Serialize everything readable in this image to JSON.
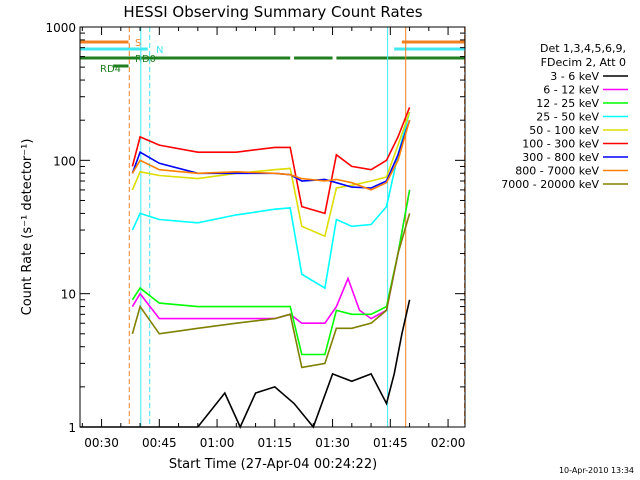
{
  "chart_data": {
    "type": "line",
    "title": "HESSI Observing Summary Count Rates",
    "xlabel": "Start Time (27-Apr-04 00:24:22)",
    "ylabel": "Count Rate (s⁻¹ detector⁻¹)",
    "yscale": "log",
    "ylim": [
      1,
      1000
    ],
    "xlim_minutes": [
      24.4,
      124.4
    ],
    "x_ticks": [
      "00:30",
      "00:45",
      "01:00",
      "01:15",
      "01:30",
      "01:45",
      "02:00"
    ],
    "y_ticks": [
      "1",
      "10",
      "100",
      "1000"
    ],
    "legend_header": [
      "Det 1,3,4,5,6,9,",
      "FDecim 2, Att 0"
    ],
    "legend_position": "right",
    "footer_stamp": "10-Apr-2010 13:34",
    "state_bars": [
      {
        "label": "S",
        "color": "#f08020",
        "segments": [
          [
            24.4,
            37
          ],
          [
            108,
            124.4
          ]
        ]
      },
      {
        "label": "N",
        "color": "#40e8f0",
        "segments": [
          [
            24.4,
            42
          ],
          [
            106,
            124.4
          ]
        ]
      },
      {
        "label": "RD0",
        "color": "#208020",
        "segments": [
          [
            24.4,
            79
          ],
          [
            80,
            90
          ],
          [
            91,
            124.4
          ]
        ]
      },
      {
        "label": "RD4",
        "color": "#208020",
        "segments": [
          [
            33,
            37
          ]
        ]
      }
    ],
    "vlines": [
      {
        "x": 37.2,
        "color": "#f08020",
        "style": "dashed"
      },
      {
        "x": 40.2,
        "color": "#40e8f0",
        "style": "solid"
      },
      {
        "x": 42.5,
        "color": "#40e8f0",
        "style": "dashed"
      },
      {
        "x": 104.3,
        "color": "#40e8f0",
        "style": "solid"
      },
      {
        "x": 109,
        "color": "#f08020",
        "style": "solid"
      },
      {
        "x": 124.3,
        "color": "#f08020",
        "style": "dashed"
      }
    ],
    "series": [
      {
        "name": "3 - 6 keV",
        "color": "#000000",
        "x": [
          24.4,
          37,
          45,
          55,
          62,
          66,
          70,
          75,
          80,
          85,
          90,
          95,
          100,
          104,
          106,
          108,
          110
        ],
        "y": [
          1,
          1,
          1,
          1,
          1.8,
          1,
          1.8,
          2,
          1.5,
          1,
          2.5,
          2.2,
          2.5,
          1.5,
          2.5,
          5,
          9
        ]
      },
      {
        "name": "6 - 12 keV",
        "color": "#ff00ff",
        "x": [
          38,
          40,
          45,
          55,
          65,
          75,
          79,
          82,
          88,
          91,
          94,
          97,
          100,
          104,
          107,
          110
        ],
        "y": [
          8,
          10,
          6.5,
          6.5,
          6.5,
          6.5,
          7,
          6,
          6,
          8,
          13,
          7.5,
          6.5,
          7.5,
          20,
          60
        ]
      },
      {
        "name": "12 - 25 keV",
        "color": "#00ff00",
        "x": [
          38,
          40,
          45,
          55,
          65,
          75,
          79,
          82,
          88,
          91,
          95,
          100,
          104,
          107,
          110
        ],
        "y": [
          9,
          11,
          8.5,
          8,
          8,
          8,
          8,
          3.5,
          3.5,
          7.5,
          7,
          7,
          8,
          20,
          60
        ]
      },
      {
        "name": "25 - 50 keV",
        "color": "#00ffff",
        "x": [
          38,
          40,
          45,
          55,
          65,
          75,
          79,
          82,
          88,
          91,
          95,
          100,
          104,
          107,
          110
        ],
        "y": [
          30,
          40,
          36,
          34,
          39,
          43,
          44,
          14,
          11,
          36,
          32,
          33,
          45,
          110,
          230
        ]
      },
      {
        "name": "50 - 100 keV",
        "color": "#dddd00",
        "x": [
          38,
          40,
          45,
          55,
          65,
          75,
          79,
          82,
          88,
          91,
          95,
          100,
          104,
          107,
          110
        ],
        "y": [
          60,
          82,
          77,
          73,
          80,
          85,
          87,
          32,
          27,
          62,
          65,
          70,
          75,
          130,
          230
        ]
      },
      {
        "name": "100 - 300 keV",
        "color": "#ff0000",
        "x": [
          38,
          40,
          45,
          55,
          65,
          75,
          79,
          82,
          88,
          91,
          95,
          100,
          104,
          107,
          110
        ],
        "y": [
          90,
          150,
          130,
          115,
          115,
          125,
          125,
          45,
          40,
          110,
          90,
          85,
          100,
          150,
          250
        ]
      },
      {
        "name": "300 - 800 keV",
        "color": "#0000ff",
        "x": [
          38,
          40,
          45,
          55,
          65,
          75,
          79,
          82,
          88,
          91,
          95,
          100,
          104,
          107,
          110
        ],
        "y": [
          80,
          115,
          95,
          80,
          80,
          80,
          78,
          70,
          72,
          68,
          63,
          62,
          70,
          110,
          200
        ]
      },
      {
        "name": "800 - 7000 keV",
        "color": "#ff8000",
        "x": [
          38,
          40,
          45,
          55,
          65,
          75,
          79,
          82,
          88,
          91,
          95,
          100,
          104,
          107,
          110
        ],
        "y": [
          80,
          100,
          85,
          80,
          82,
          80,
          78,
          73,
          70,
          72,
          68,
          60,
          68,
          100,
          200
        ]
      },
      {
        "name": "7000 - 20000 keV",
        "color": "#808000",
        "x": [
          38,
          40,
          45,
          55,
          65,
          75,
          79,
          82,
          88,
          91,
          95,
          100,
          104,
          107,
          110
        ],
        "y": [
          5,
          8,
          5,
          5.5,
          6,
          6.5,
          7,
          2.8,
          3,
          5.5,
          5.5,
          6,
          7.5,
          20,
          40
        ]
      }
    ]
  }
}
